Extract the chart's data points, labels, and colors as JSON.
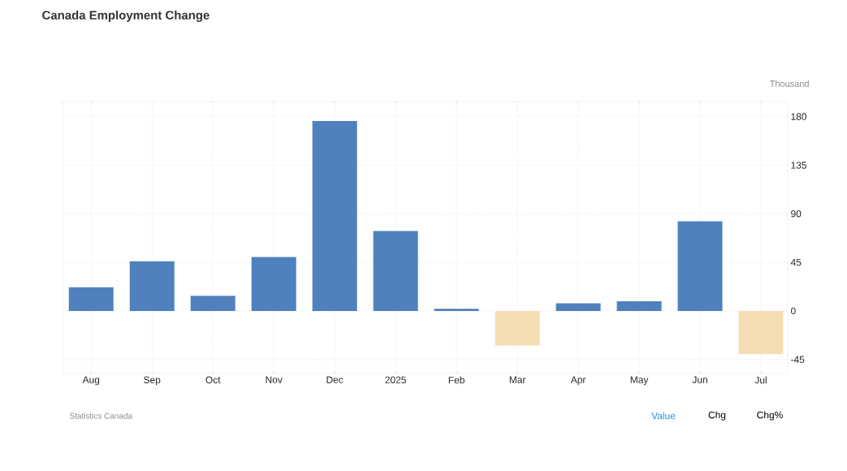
{
  "chart_data": {
    "type": "bar",
    "title": "Canada Employment Change",
    "ylabel": "Thousand",
    "categories": [
      "Aug",
      "Sep",
      "Oct",
      "Nov",
      "Dec",
      "2025",
      "Feb",
      "Mar",
      "Apr",
      "May",
      "Jun",
      "Jul"
    ],
    "values": [
      22,
      46,
      14,
      50,
      176,
      74,
      2,
      -32,
      7,
      9,
      83,
      -40
    ],
    "colors": [
      "#4f81bd",
      "#4f81bd",
      "#4f81bd",
      "#4f81bd",
      "#4f81bd",
      "#4f81bd",
      "#4f81bd",
      "#f5deb3",
      "#4f81bd",
      "#4f81bd",
      "#4f81bd",
      "#f5deb3"
    ],
    "ylim": [
      -58,
      194
    ],
    "yticks": [
      -45,
      0,
      45,
      90,
      135,
      180
    ],
    "grid": true,
    "annotations": [
      "Statistics Canada",
      "Value",
      "Chg",
      "Chg%"
    ]
  }
}
